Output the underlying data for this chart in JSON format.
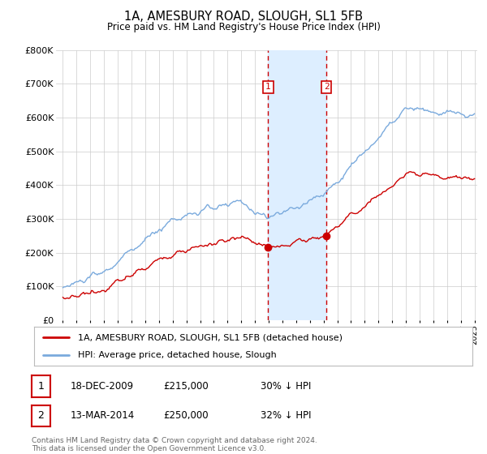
{
  "title": "1A, AMESBURY ROAD, SLOUGH, SL1 5FB",
  "subtitle": "Price paid vs. HM Land Registry's House Price Index (HPI)",
  "legend_line1": "1A, AMESBURY ROAD, SLOUGH, SL1 5FB (detached house)",
  "legend_line2": "HPI: Average price, detached house, Slough",
  "sale1_label": "1",
  "sale1_date": "18-DEC-2009",
  "sale1_price": "£215,000",
  "sale1_pct": "30% ↓ HPI",
  "sale2_label": "2",
  "sale2_date": "13-MAR-2014",
  "sale2_price": "£250,000",
  "sale2_pct": "32% ↓ HPI",
  "footer1": "Contains HM Land Registry data © Crown copyright and database right 2024.",
  "footer2": "This data is licensed under the Open Government Licence v3.0.",
  "hpi_color": "#7aaadd",
  "price_color": "#cc0000",
  "bg_color": "#ffffff",
  "grid_color": "#cccccc",
  "highlight_color": "#ddeeff",
  "dashed_line_color": "#cc0000",
  "ylim": [
    0,
    800000
  ],
  "yticks": [
    0,
    100000,
    200000,
    300000,
    400000,
    500000,
    600000,
    700000,
    800000
  ],
  "ytick_labels": [
    "£0",
    "£100K",
    "£200K",
    "£300K",
    "£400K",
    "£500K",
    "£600K",
    "£700K",
    "£800K"
  ],
  "year_start": 1995,
  "year_end": 2025,
  "sale1_year": 2009.96,
  "sale2_year": 2014.2
}
